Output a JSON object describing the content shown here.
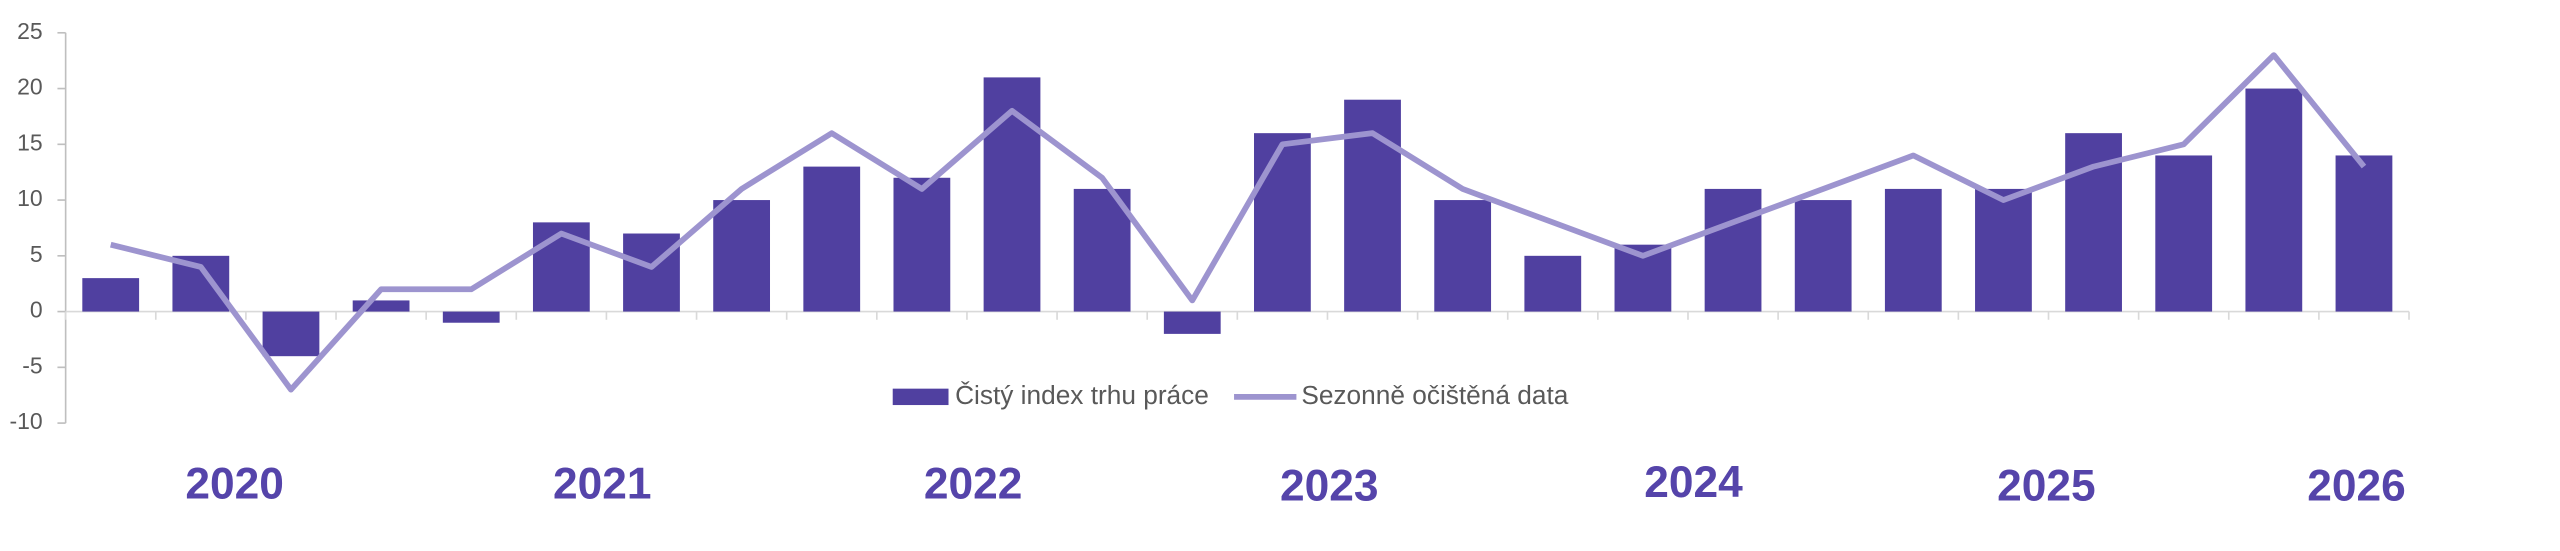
{
  "chart_data": {
    "type": "bar-line",
    "categories": [
      null,
      null,
      null,
      null,
      null,
      null,
      null,
      null,
      null,
      null,
      null,
      null,
      null,
      null,
      null,
      null,
      null,
      null,
      null,
      null,
      null,
      null,
      null,
      null,
      null,
      null
    ],
    "series": [
      {
        "name": "Čistý index trhu práce",
        "type": "bar",
        "color": "#5040a0",
        "values": [
          3,
          5,
          -4,
          1,
          -1,
          8,
          7,
          10,
          13,
          12,
          21,
          11,
          -2,
          16,
          19,
          10,
          5,
          6,
          11,
          10,
          11,
          11,
          16,
          14,
          20,
          14
        ]
      },
      {
        "name": "Sezonně očištěná data",
        "type": "line",
        "color": "#9d94cf",
        "values": [
          6,
          4,
          -7,
          2,
          2,
          7,
          4,
          11,
          16,
          11,
          18,
          12,
          1,
          15,
          16,
          11,
          8,
          5,
          8,
          11,
          14,
          10,
          13,
          15,
          23,
          13
        ]
      }
    ],
    "ylim": [
      -10,
      25
    ],
    "yticks": [
      -10,
      -5,
      0,
      5,
      10,
      15,
      20,
      25
    ],
    "annotations": [
      "2020",
      "2021",
      "2022",
      "2023",
      "2024",
      "2025",
      "2026"
    ]
  }
}
